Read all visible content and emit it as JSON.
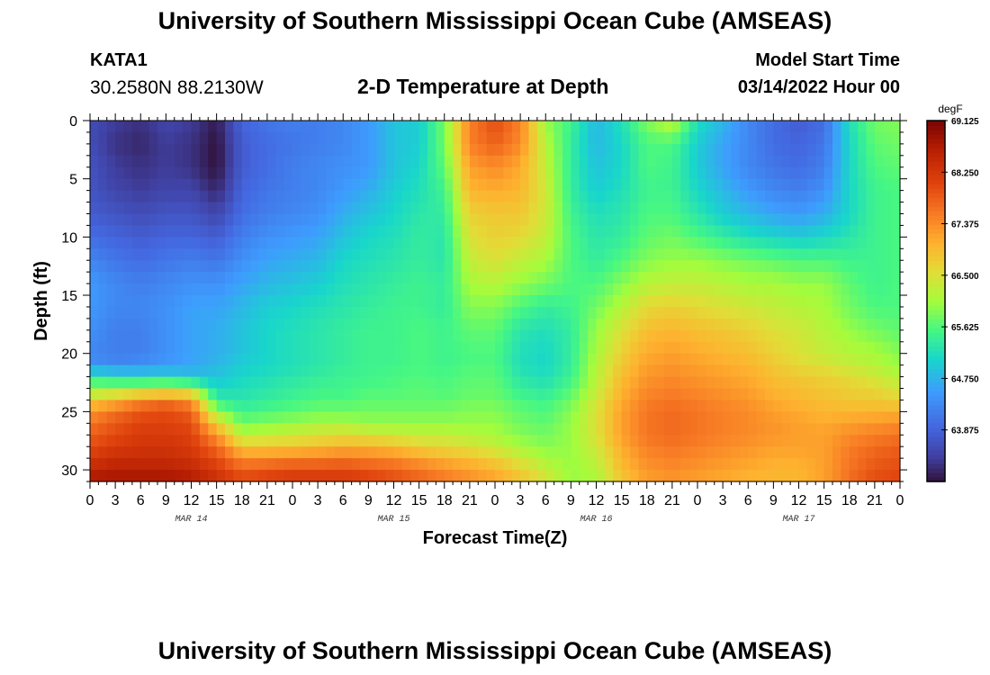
{
  "header": {
    "title": "University of Southern Mississippi Ocean Cube (AMSEAS)",
    "station": "KATA1",
    "coordinates": "30.2580N  88.2130W",
    "subtitle": "2-D Temperature at Depth",
    "start_label": "Model Start Time",
    "start_value": "03/14/2022 Hour 00"
  },
  "footer": {
    "title": "University of Southern Mississippi Ocean Cube (AMSEAS)"
  },
  "chart_data": {
    "type": "heatmap",
    "title": "2-D Temperature at Depth",
    "xlabel": "Forecast Time(Z)",
    "ylabel": "Depth (ft)",
    "x_range": [
      0,
      96
    ],
    "y_range": [
      0,
      31
    ],
    "y_ticks": [
      0,
      5,
      10,
      15,
      20,
      25,
      30
    ],
    "x_tick_values": [
      0,
      3,
      6,
      9,
      12,
      15,
      18,
      21,
      24,
      27,
      30,
      33,
      36,
      39,
      42,
      45,
      48,
      51,
      54,
      57,
      60,
      63,
      66,
      69,
      72,
      75,
      78,
      81,
      84,
      87,
      90,
      93,
      96
    ],
    "x_tick_labels": [
      "0",
      "3",
      "6",
      "9",
      "12",
      "15",
      "18",
      "21",
      "0",
      "3",
      "6",
      "9",
      "12",
      "15",
      "18",
      "21",
      "0",
      "3",
      "6",
      "9",
      "12",
      "15",
      "18",
      "21",
      "0",
      "3",
      "6",
      "9",
      "12",
      "15",
      "18",
      "21",
      "0"
    ],
    "day_labels": [
      {
        "text": "MAR 14",
        "at_hour": 12
      },
      {
        "text": "MAR 15",
        "at_hour": 36
      },
      {
        "text": "MAR 16",
        "at_hour": 60
      },
      {
        "text": "MAR 17",
        "at_hour": 84
      }
    ],
    "colorbar": {
      "units": "degF",
      "min": 63.0,
      "max": 69.125,
      "tick_values": [
        69.125,
        68.25,
        67.375,
        66.5,
        65.625,
        64.75,
        63.875
      ],
      "tick_labels": [
        "69.125",
        "68.250",
        "67.375",
        "66.500",
        "65.625",
        "64.750",
        "63.875"
      ]
    },
    "grid_time_hours": [
      0,
      3,
      6,
      9,
      12,
      15,
      18,
      21,
      24,
      27,
      30,
      33,
      36,
      39,
      42,
      45,
      48,
      51,
      54,
      57,
      60,
      63,
      66,
      69,
      72,
      75,
      78,
      81,
      84,
      87,
      90,
      93,
      96
    ],
    "grid_depth_ft": [
      0,
      2,
      4,
      6,
      8,
      10,
      12,
      14,
      16,
      18,
      20,
      21,
      22,
      23,
      24,
      25,
      26,
      27,
      28,
      29,
      30,
      31
    ],
    "temperature_degF": [
      [
        63.6,
        63.4,
        63.3,
        63.5,
        63.4,
        63.1,
        63.9,
        64.1,
        64.2,
        64.2,
        64.3,
        64.5,
        64.9,
        65.0,
        65.8,
        67.5,
        68.0,
        67.5,
        66.0,
        65.5,
        64.8,
        65.2,
        65.9,
        66.3,
        65.2,
        64.8,
        64.3,
        64.0,
        63.8,
        64.0,
        65.2,
        65.8,
        65.9
      ],
      [
        63.6,
        63.3,
        63.2,
        63.4,
        63.3,
        63.0,
        63.8,
        64.0,
        64.1,
        64.2,
        64.3,
        64.5,
        64.9,
        65.0,
        65.8,
        67.5,
        67.8,
        67.4,
        66.2,
        65.4,
        64.8,
        65.1,
        65.6,
        65.6,
        65.0,
        64.6,
        64.3,
        64.0,
        63.9,
        64.1,
        65.1,
        65.7,
        65.8
      ],
      [
        63.7,
        63.4,
        63.3,
        63.4,
        63.3,
        63.0,
        63.8,
        64.0,
        64.2,
        64.3,
        64.4,
        64.5,
        64.9,
        65.1,
        65.7,
        67.2,
        67.4,
        67.1,
        66.3,
        65.4,
        64.9,
        65.1,
        65.6,
        65.5,
        65.0,
        64.6,
        64.3,
        64.1,
        64.0,
        64.2,
        65.1,
        65.6,
        65.7
      ],
      [
        63.7,
        63.5,
        63.4,
        63.5,
        63.5,
        63.2,
        63.9,
        64.1,
        64.2,
        64.3,
        64.5,
        64.7,
        65.0,
        65.2,
        65.5,
        67.0,
        67.1,
        67.0,
        66.4,
        65.4,
        65.0,
        65.2,
        65.5,
        65.5,
        65.1,
        64.8,
        64.5,
        64.3,
        64.2,
        64.4,
        65.1,
        65.5,
        65.6
      ],
      [
        63.8,
        63.7,
        63.6,
        63.7,
        63.7,
        63.5,
        64.0,
        64.2,
        64.3,
        64.4,
        64.7,
        64.9,
        65.1,
        65.3,
        65.4,
        66.7,
        66.8,
        66.8,
        66.4,
        65.5,
        65.2,
        65.3,
        65.6,
        65.6,
        65.3,
        65.0,
        64.8,
        64.6,
        64.5,
        64.7,
        65.1,
        65.5,
        65.6
      ],
      [
        64.0,
        63.9,
        63.8,
        63.9,
        63.9,
        63.8,
        64.2,
        64.4,
        64.5,
        64.6,
        64.9,
        65.1,
        65.2,
        65.4,
        65.3,
        66.5,
        66.7,
        66.6,
        66.3,
        65.6,
        65.3,
        65.4,
        65.7,
        65.8,
        65.6,
        65.4,
        65.2,
        65.1,
        65.0,
        65.1,
        65.3,
        65.5,
        65.6
      ],
      [
        64.3,
        64.1,
        64.0,
        64.1,
        64.2,
        64.1,
        64.4,
        64.6,
        64.7,
        64.8,
        65.1,
        65.2,
        65.3,
        65.4,
        65.3,
        66.3,
        66.5,
        66.3,
        66.1,
        65.6,
        65.4,
        65.6,
        65.9,
        66.0,
        66.0,
        65.9,
        65.8,
        65.7,
        65.6,
        65.6,
        65.5,
        65.5,
        65.6
      ],
      [
        64.5,
        64.3,
        64.2,
        64.3,
        64.4,
        64.4,
        64.6,
        64.8,
        64.9,
        65.0,
        65.2,
        65.3,
        65.4,
        65.5,
        65.4,
        66.1,
        66.2,
        66.0,
        65.8,
        65.6,
        65.6,
        65.9,
        66.2,
        66.3,
        66.3,
        66.2,
        66.1,
        66.1,
        66.0,
        66.0,
        65.7,
        65.5,
        65.6
      ],
      [
        64.5,
        64.3,
        64.3,
        64.4,
        64.6,
        64.6,
        64.8,
        65.0,
        65.1,
        65.2,
        65.3,
        65.4,
        65.5,
        65.5,
        65.4,
        65.9,
        65.9,
        65.6,
        65.4,
        65.5,
        65.8,
        66.2,
        66.6,
        66.7,
        66.6,
        66.5,
        66.4,
        66.3,
        66.2,
        66.1,
        65.8,
        65.6,
        65.6
      ],
      [
        64.4,
        64.2,
        64.2,
        64.4,
        64.6,
        64.7,
        64.9,
        65.1,
        65.2,
        65.3,
        65.4,
        65.5,
        65.5,
        65.6,
        65.5,
        65.7,
        65.7,
        65.3,
        65.2,
        65.4,
        66.0,
        66.5,
        66.9,
        67.0,
        66.9,
        66.8,
        66.7,
        66.5,
        66.4,
        66.2,
        66.0,
        65.8,
        65.7
      ],
      [
        64.3,
        64.2,
        64.2,
        64.4,
        64.6,
        64.7,
        64.9,
        65.1,
        65.2,
        65.3,
        65.4,
        65.5,
        65.5,
        65.6,
        65.5,
        65.6,
        65.6,
        65.2,
        65.1,
        65.4,
        66.1,
        66.7,
        67.1,
        67.2,
        67.1,
        67.0,
        66.9,
        66.7,
        66.5,
        66.3,
        66.2,
        66.1,
        65.9
      ],
      [
        64.4,
        64.3,
        64.4,
        64.5,
        64.6,
        64.8,
        65.0,
        65.1,
        65.2,
        65.3,
        65.4,
        65.5,
        65.5,
        65.6,
        65.5,
        65.6,
        65.6,
        65.2,
        65.1,
        65.4,
        66.2,
        66.8,
        67.2,
        67.3,
        67.2,
        67.1,
        67.0,
        66.8,
        66.6,
        66.5,
        66.3,
        66.2,
        66.0
      ],
      [
        65.4,
        65.2,
        65.1,
        65.1,
        64.9,
        64.9,
        65.1,
        65.2,
        65.3,
        65.4,
        65.5,
        65.5,
        65.6,
        65.6,
        65.6,
        65.7,
        65.7,
        65.3,
        65.2,
        65.5,
        66.2,
        66.9,
        67.3,
        67.4,
        67.3,
        67.2,
        67.1,
        66.9,
        66.8,
        66.7,
        66.6,
        66.4,
        66.2
      ],
      [
        65.9,
        66.0,
        66.1,
        66.2,
        66.1,
        65.1,
        65.2,
        65.3,
        65.4,
        65.5,
        65.5,
        65.6,
        65.6,
        65.7,
        65.6,
        65.7,
        65.7,
        65.4,
        65.3,
        65.6,
        66.3,
        67.0,
        67.4,
        67.5,
        67.4,
        67.3,
        67.2,
        67.0,
        66.9,
        66.8,
        66.7,
        66.6,
        66.4
      ],
      [
        66.7,
        67.0,
        67.4,
        67.6,
        67.3,
        65.4,
        65.3,
        65.4,
        65.5,
        65.6,
        65.6,
        65.7,
        65.7,
        65.7,
        65.7,
        65.8,
        65.8,
        65.6,
        65.5,
        65.8,
        66.4,
        67.1,
        67.5,
        67.6,
        67.5,
        67.4,
        67.3,
        67.1,
        67.0,
        66.9,
        66.8,
        66.8,
        66.7
      ],
      [
        67.3,
        67.6,
        67.9,
        68.0,
        67.8,
        66.0,
        65.5,
        65.6,
        65.7,
        65.8,
        65.8,
        65.8,
        65.8,
        65.8,
        65.8,
        65.9,
        65.9,
        65.7,
        65.6,
        65.9,
        66.5,
        67.2,
        67.6,
        67.7,
        67.6,
        67.5,
        67.4,
        67.2,
        67.1,
        67.0,
        67.0,
        67.0,
        67.0
      ],
      [
        67.6,
        67.9,
        68.1,
        68.1,
        68.0,
        66.7,
        65.8,
        65.9,
        66.0,
        66.1,
        66.1,
        66.0,
        66.0,
        66.0,
        66.0,
        66.0,
        66.0,
        65.8,
        65.7,
        66.0,
        66.5,
        67.2,
        67.6,
        67.7,
        67.6,
        67.5,
        67.4,
        67.3,
        67.2,
        67.1,
        67.2,
        67.3,
        67.4
      ],
      [
        67.8,
        68.0,
        68.2,
        68.2,
        68.1,
        67.3,
        66.2,
        66.3,
        66.4,
        66.5,
        66.6,
        66.5,
        66.4,
        66.3,
        66.3,
        66.2,
        66.1,
        65.9,
        65.8,
        66.0,
        66.5,
        67.2,
        67.6,
        67.7,
        67.6,
        67.5,
        67.4,
        67.3,
        67.2,
        67.2,
        67.4,
        67.5,
        67.6
      ],
      [
        68.0,
        68.2,
        68.3,
        68.3,
        68.2,
        67.7,
        66.8,
        66.8,
        66.8,
        66.9,
        67.0,
        67.0,
        66.9,
        66.7,
        66.6,
        66.5,
        66.3,
        66.1,
        65.9,
        66.0,
        66.4,
        67.1,
        67.5,
        67.6,
        67.5,
        67.4,
        67.3,
        67.2,
        67.2,
        67.2,
        67.5,
        67.7,
        67.8
      ],
      [
        68.2,
        68.4,
        68.4,
        68.4,
        68.3,
        68.0,
        67.4,
        67.4,
        67.5,
        67.5,
        67.6,
        67.5,
        67.4,
        67.2,
        67.0,
        66.9,
        66.7,
        66.4,
        66.1,
        66.0,
        66.3,
        67.0,
        67.4,
        67.5,
        67.4,
        67.3,
        67.2,
        67.1,
        67.1,
        67.2,
        67.6,
        67.8,
        67.9
      ],
      [
        68.5,
        68.6,
        68.6,
        68.6,
        68.5,
        68.2,
        67.8,
        67.9,
        68.0,
        68.0,
        68.0,
        67.9,
        67.8,
        67.6,
        67.4,
        67.2,
        67.0,
        66.7,
        66.3,
        66.0,
        66.2,
        66.9,
        67.3,
        67.4,
        67.3,
        67.2,
        67.1,
        67.0,
        67.0,
        67.2,
        67.6,
        67.9,
        68.0
      ],
      [
        68.8,
        68.8,
        68.8,
        68.8,
        68.7,
        68.4,
        68.1,
        68.2,
        68.3,
        68.3,
        68.3,
        68.2,
        68.0,
        67.8,
        67.6,
        67.4,
        67.2,
        66.9,
        66.5,
        66.0,
        66.1,
        66.8,
        67.2,
        67.3,
        67.2,
        67.1,
        67.0,
        67.0,
        67.0,
        67.2,
        67.7,
        68.0,
        68.1
      ]
    ]
  }
}
